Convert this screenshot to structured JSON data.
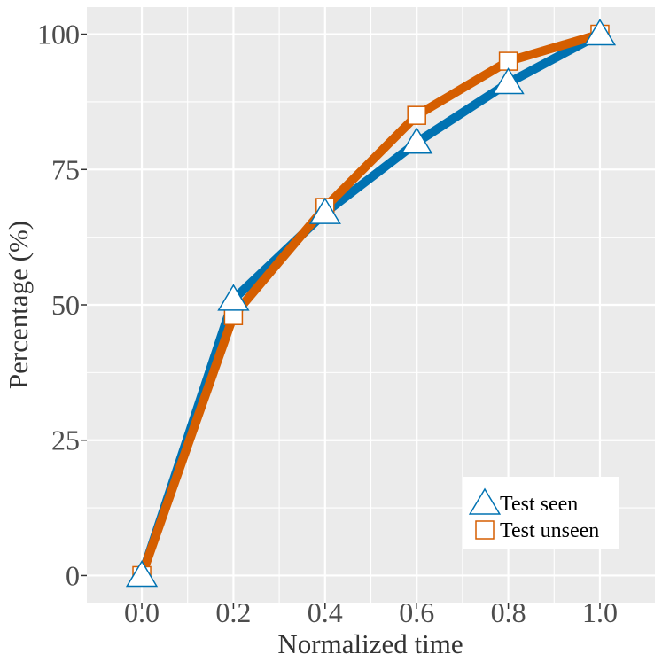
{
  "chart_data": {
    "type": "line",
    "xlabel": "Normalized time",
    "ylabel": "Percentage (%)",
    "x": [
      0.0,
      0.2,
      0.4,
      0.6,
      0.8,
      1.0
    ],
    "x_tick_labels": [
      "0.0",
      "0.2",
      "0.4",
      "0.6",
      "0.8",
      "1.0"
    ],
    "y_ticks": [
      0,
      25,
      50,
      75,
      100
    ],
    "y_tick_labels": [
      "0",
      "25",
      "50",
      "75",
      "100"
    ],
    "xlim": [
      -0.12,
      1.12
    ],
    "ylim": [
      -5,
      105
    ],
    "grid": true,
    "legend_position": "bottom-right",
    "series": [
      {
        "name": "Test seen",
        "values": [
          0,
          51,
          67,
          80,
          91,
          100
        ],
        "color": "#0072b2",
        "marker": "triangle"
      },
      {
        "name": "Test unseen",
        "values": [
          0,
          48,
          68,
          85,
          95,
          100
        ],
        "color": "#d55e00",
        "marker": "square"
      }
    ]
  },
  "colors": {
    "panel_background": "#ebebeb",
    "grid_line": "#ffffff"
  }
}
